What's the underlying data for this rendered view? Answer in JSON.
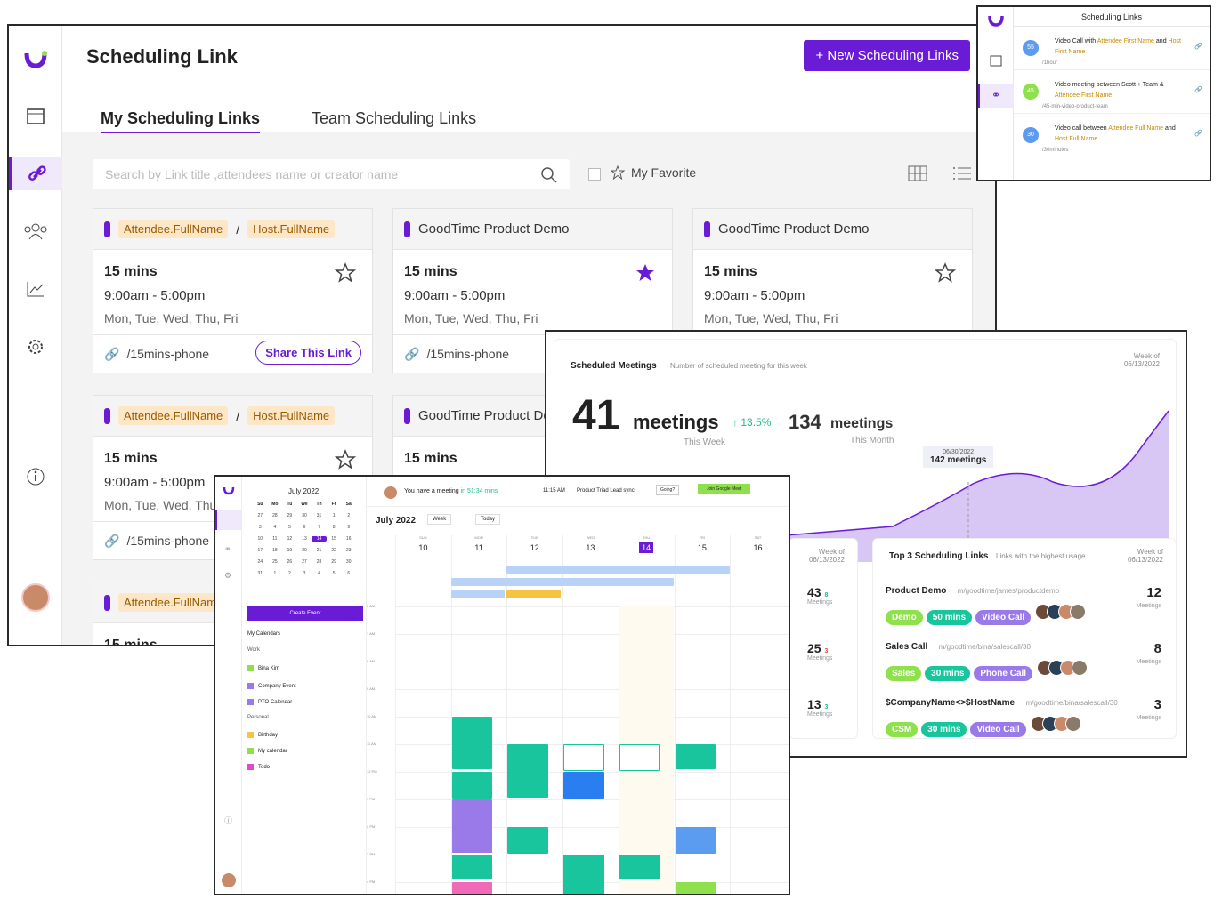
{
  "main": {
    "title": "Scheduling Link",
    "new_button": "+ New Scheduling Links",
    "tabs": [
      "My Scheduling Links",
      "Team Scheduling Links"
    ],
    "search_placeholder": "Search by Link title ,attendees name or creator name",
    "favorite": "My Favorite"
  },
  "cards": [
    {
      "attendee": "Attendee.FullName",
      "sep": "/",
      "host": "Host.FullName",
      "duration": "15 mins",
      "time": "9:00am - 5:00pm",
      "days": "Mon, Tue, Wed, Thu, Fri",
      "link": "/15mins-phone",
      "share": "Share This Link"
    },
    {
      "title": "GoodTime Product Demo",
      "duration": "15 mins",
      "time": "9:00am - 5:00pm",
      "days": "Mon, Tue, Wed, Thu, Fri",
      "link": "/15mins-phone"
    },
    {
      "title": "GoodTime Product Demo",
      "duration": "15 mins",
      "time": "9:00am - 5:00pm",
      "days": "Mon, Tue, Wed, Thu, Fri"
    },
    {
      "attendee": "Attendee.FullName",
      "sep": "/",
      "host": "Host.FullName",
      "duration": "15 mins",
      "time": "9:00am - 5:00pm",
      "days": "Mon, Tue, Wed, Thu",
      "link": "/15mins-phone"
    },
    {
      "title": "GoodTime Product De",
      "duration": "15 mins"
    },
    {
      "attendee": "Attendee.FullNam",
      "duration": "15 mins"
    }
  ],
  "mini": {
    "title": "Scheduling Links",
    "items": [
      {
        "badge": "55",
        "t1": "Video Call with",
        "a": "Attendee First Name",
        "t2": "and",
        "h": "Host First Name",
        "slug": "/1hour"
      },
      {
        "badge": "45",
        "t1": "Video meeting between Scott + Team &",
        "a": "Attendee First Name",
        "t2": "",
        "h": "",
        "slug": "/45-min-video-product-team"
      },
      {
        "badge": "30",
        "t1": "Video call between",
        "a": "Attendee Full Name",
        "t2": "and",
        "h": "Host Full Name",
        "slug": "/30minutes"
      }
    ]
  },
  "stats": {
    "title": "Scheduled Meetings",
    "subtitle": "Number of scheduled meeting for this week",
    "week_label": "Week of",
    "week_date": "06/13/2022",
    "big": "41",
    "big_unit": "meetings",
    "growth": "13.5%",
    "this_week": "This Week",
    "month": "134",
    "month_unit": "meetings",
    "this_month": "This Month",
    "tip_date": "06/30/2022",
    "tip_val": "142 meetings",
    "left_rows": [
      {
        "n": "43",
        "d": "8",
        "l": "Meetings"
      },
      {
        "n": "25",
        "d": "3",
        "l": "Meetings"
      },
      {
        "n": "13",
        "d": "3",
        "l": "Meetings"
      }
    ],
    "top_title": "Top 3 Scheduling Links",
    "top_sub": "Links with the highest usage",
    "top": [
      {
        "name": "Product Demo",
        "url": "m/goodtime/james/productdemo",
        "tags": [
          "Demo",
          "50 mins",
          "Video Call"
        ],
        "count": "12",
        "l": "Meetings"
      },
      {
        "name": "Sales Call",
        "url": "m/goodtime/bina/salescall/30",
        "tags": [
          "Sales",
          "30 mins",
          "Phone Call"
        ],
        "count": "8",
        "l": "Meetings"
      },
      {
        "name": "$CompanyName<>$HostName",
        "url": "m/goodtime/bina/salescall/30",
        "tags": [
          "CSM",
          "30 mins",
          "Video Call"
        ],
        "count": "3",
        "l": "Meetings"
      }
    ]
  },
  "cal": {
    "month": "July 2022",
    "month_big": "July 2022",
    "banner": "You have a meeting",
    "banner_in": "in 51:34 mins",
    "banner_time": "11:15 AM",
    "banner_ev": "Product Triad Lead sync",
    "going": "Going?",
    "join": "Join Google Meet",
    "view": "Week",
    "today": "Today",
    "create": "Create Event",
    "my_cals": "My Calendars",
    "work": "Work",
    "personal": "Personal",
    "cals": [
      "Bina Kim",
      "Company Event",
      "PTO Calendar",
      "Birthday",
      "My calendar",
      "Todo"
    ],
    "dow": [
      "SUN",
      "MON",
      "TUE",
      "WED",
      "THU",
      "FRI",
      "SAT"
    ],
    "dates": [
      "10",
      "11",
      "12",
      "13",
      "14",
      "15",
      "16"
    ],
    "hours": [
      "6 AM",
      "7 AM",
      "8 AM",
      "9 AM",
      "10 AM",
      "11 AM",
      "12 PM",
      "1 PM",
      "2 PM",
      "3 PM",
      "4 PM"
    ]
  }
}
